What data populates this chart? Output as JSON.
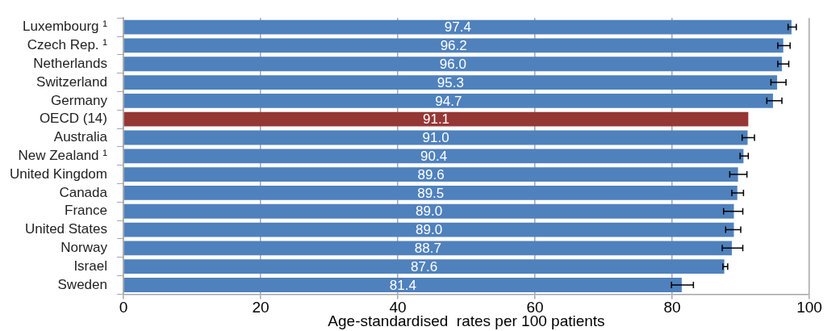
{
  "chart_data": {
    "type": "bar",
    "orientation": "horizontal",
    "xlabel": "Age-standardised  rates per 100 patients",
    "categories": [
      "Luxembourg ¹",
      "Czech Rep. ¹",
      "Netherlands",
      "Switzerland",
      "Germany",
      "OECD (14)",
      "Australia",
      "New Zealand ¹",
      "United Kingdom",
      "Canada",
      "France",
      "United States",
      "Norway",
      "Israel",
      "Sweden"
    ],
    "values": [
      97.4,
      96.2,
      96.0,
      95.3,
      94.7,
      91.1,
      91.0,
      90.4,
      89.6,
      89.5,
      89.0,
      89.0,
      88.7,
      87.6,
      81.4
    ],
    "colors": [
      "#4f81bd",
      "#4f81bd",
      "#4f81bd",
      "#4f81bd",
      "#4f81bd",
      "#953735",
      "#4f81bd",
      "#4f81bd",
      "#4f81bd",
      "#4f81bd",
      "#4f81bd",
      "#4f81bd",
      "#4f81bd",
      "#4f81bd",
      "#4f81bd"
    ],
    "errors": [
      [
        96.9,
        98.1
      ],
      [
        95.4,
        97.2
      ],
      [
        95.4,
        97.0
      ],
      [
        94.4,
        96.6
      ],
      [
        93.8,
        96.0
      ],
      null,
      [
        90.2,
        92.0
      ],
      [
        89.9,
        91.1
      ],
      [
        88.4,
        90.9
      ],
      [
        88.7,
        90.4
      ],
      [
        87.5,
        90.3
      ],
      [
        87.8,
        90.0
      ],
      [
        87.3,
        90.3
      ],
      [
        87.4,
        88.1
      ],
      [
        79.9,
        83.1
      ]
    ],
    "value_labels": [
      "97.4",
      "96.2",
      "96.0",
      "95.3",
      "94.7",
      "91.1",
      "91.0",
      "90.4",
      "89.6",
      "89.5",
      "89.0",
      "89.0",
      "88.7",
      "87.6",
      "81.4"
    ],
    "xlim": [
      0,
      100
    ],
    "xticks": [
      0,
      20,
      40,
      60,
      80,
      100
    ],
    "grid": "x"
  }
}
